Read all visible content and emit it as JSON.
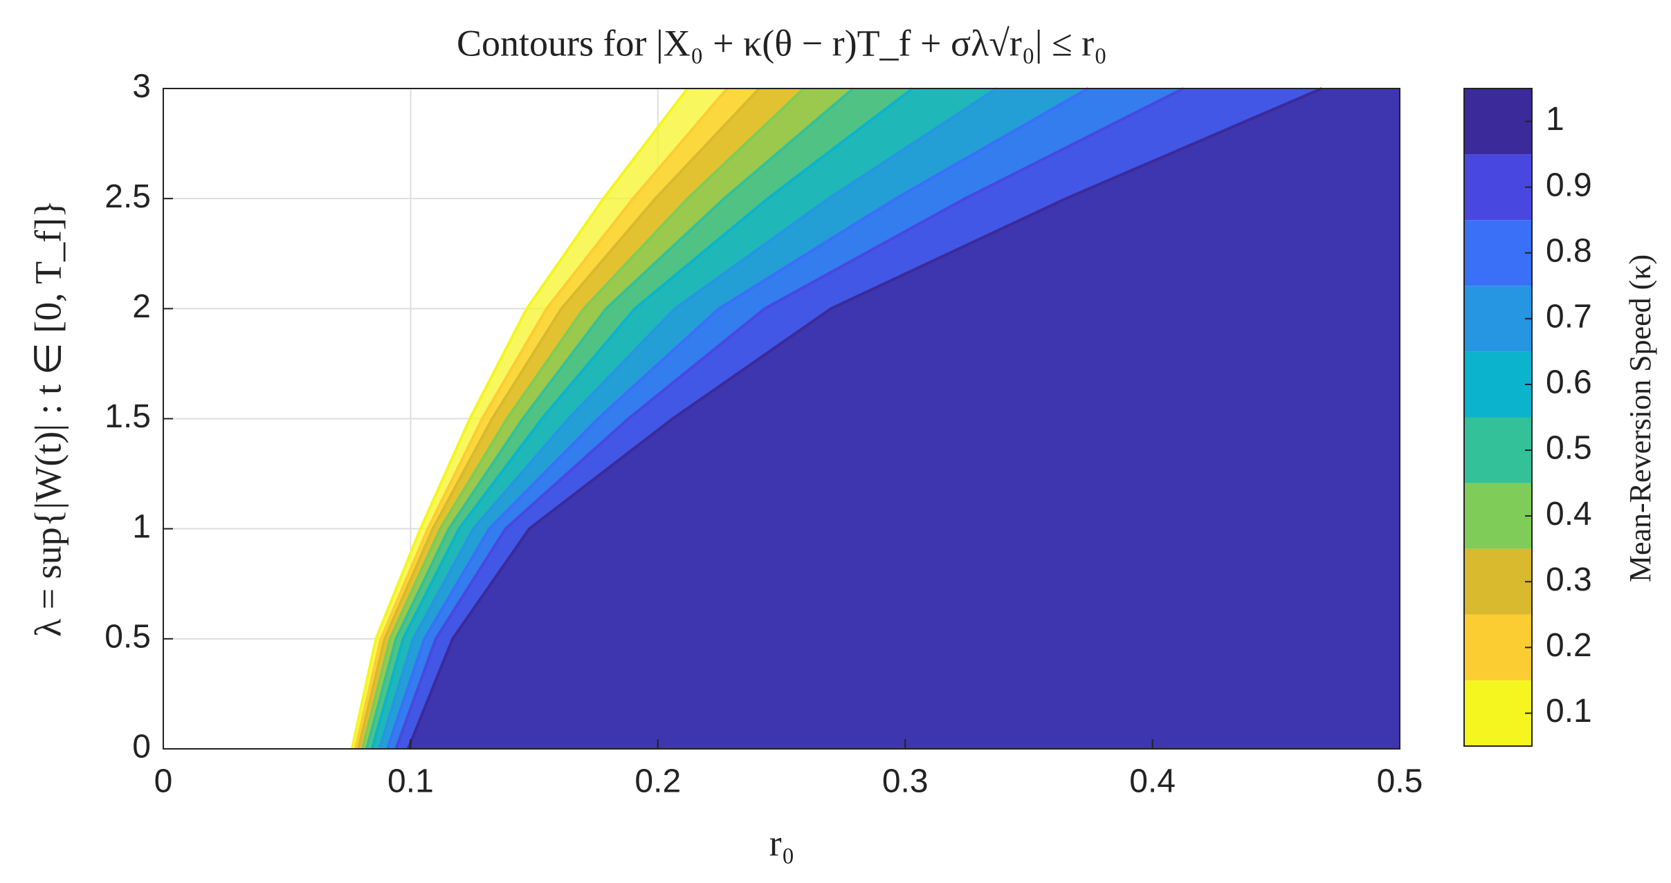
{
  "chart_data": {
    "type": "contour",
    "title": "Contours for |X₀ + κ(θ − r)T_f + σλ√r₀| ≤ r₀",
    "xlabel": "r₀",
    "ylabel": "λ = sup{|W(t)| : t ∈ [0, T_f]}",
    "xlim": [
      0,
      0.5
    ],
    "xticks": [
      0,
      0.1,
      0.2,
      0.3,
      0.4,
      0.5
    ],
    "ylim": [
      0,
      3
    ],
    "yticks": [
      0,
      0.5,
      1,
      1.5,
      2,
      2.5,
      3
    ],
    "grid": true,
    "colorbar": {
      "label": "Mean-Reversion Speed (κ)",
      "lim": [
        0.05,
        1.05
      ],
      "ticks": [
        0.1,
        0.2,
        0.3,
        0.4,
        0.5,
        0.6,
        0.7,
        0.8,
        0.9,
        1
      ]
    },
    "series": [
      {
        "level": 0.1,
        "color": "#f5f520",
        "x": [
          0.0763,
          0.086,
          0.104,
          0.124,
          0.147,
          0.178,
          0.212
        ],
        "values": [
          0,
          0.5,
          1,
          1.5,
          2,
          2.5,
          3
        ]
      },
      {
        "level": 0.2,
        "color": "#fccd32",
        "x": [
          0.0777,
          0.088,
          0.107,
          0.129,
          0.155,
          0.19,
          0.228
        ],
        "values": [
          0,
          0.5,
          1,
          1.5,
          2,
          2.5,
          3
        ]
      },
      {
        "level": 0.3,
        "color": "#d9b92e",
        "x": [
          0.0789,
          0.0895,
          0.109,
          0.133,
          0.161,
          0.199,
          0.241
        ],
        "values": [
          0,
          0.5,
          1,
          1.5,
          2,
          2.5,
          3
        ]
      },
      {
        "level": 0.4,
        "color": "#7fcc58",
        "x": [
          0.0805,
          0.0917,
          0.112,
          0.139,
          0.17,
          0.212,
          0.259
        ],
        "values": [
          0,
          0.5,
          1,
          1.5,
          2,
          2.5,
          3
        ]
      },
      {
        "level": 0.5,
        "color": "#33c19a",
        "x": [
          0.0822,
          0.0941,
          0.1155,
          0.1454,
          0.1791,
          0.2268,
          0.279
        ],
        "values": [
          0,
          0.5,
          1,
          1.5,
          2,
          2.5,
          3
        ]
      },
      {
        "level": 0.6,
        "color": "#0cb3cc",
        "x": [
          0.0844,
          0.097,
          0.1196,
          0.1531,
          0.1907,
          0.2444,
          0.303
        ],
        "values": [
          0,
          0.5,
          1,
          1.5,
          2,
          2.5,
          3
        ]
      },
      {
        "level": 0.7,
        "color": "#2696e2",
        "x": [
          0.0874,
          0.1011,
          0.1254,
          0.1639,
          0.2069,
          0.2691,
          0.337
        ],
        "values": [
          0,
          0.5,
          1,
          1.5,
          2,
          2.5,
          3
        ]
      },
      {
        "level": 0.8,
        "color": "#3a70f8",
        "x": [
          0.0906,
          0.1056,
          0.1318,
          0.1758,
          0.2247,
          0.2962,
          0.374
        ],
        "values": [
          0,
          0.5,
          1,
          1.5,
          2,
          2.5,
          3
        ]
      },
      {
        "level": 0.9,
        "color": "#4848e0",
        "x": [
          0.0941,
          0.1102,
          0.1384,
          0.1881,
          0.2432,
          0.3242,
          0.4125
        ],
        "values": [
          0,
          0.5,
          1,
          1.5,
          2,
          2.5,
          3
        ]
      },
      {
        "level": 1,
        "color": "#3b2a9a",
        "x": [
          0.099,
          0.117,
          0.148,
          0.206,
          0.27,
          0.365,
          0.4685
        ],
        "values": [
          0,
          0.5,
          1,
          1.5,
          2,
          2.5,
          3
        ]
      }
    ]
  }
}
